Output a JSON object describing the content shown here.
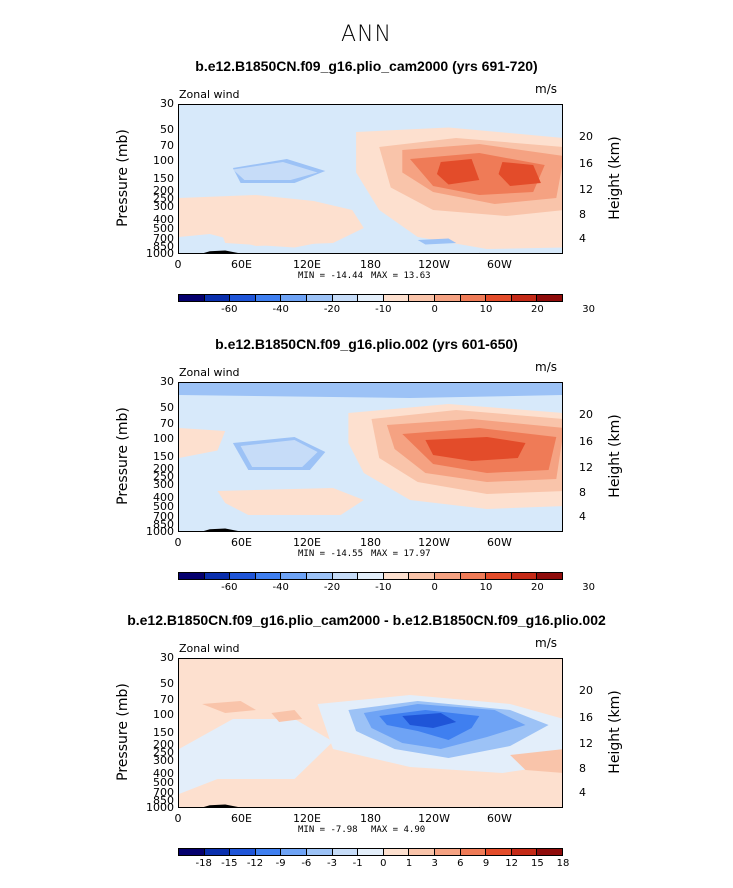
{
  "figure": {
    "title": "ANN"
  },
  "chart_data": [
    {
      "type": "heatmap",
      "title": "b.e12.B1850CN.f09_g16.plio_cam2000 (yrs 691-720)",
      "variable": "Zonal wind",
      "units": "m/s",
      "ylabel": "Pressure (mb)",
      "y2label": "Height (km)",
      "yticks": [
        "30",
        "50",
        "70",
        "100",
        "150",
        "200",
        "250",
        "300",
        "400",
        "500",
        "700",
        "850",
        "1000"
      ],
      "y2ticks": [
        "20",
        "16",
        "12",
        "8",
        "4"
      ],
      "xticks": [
        "0",
        "60E",
        "120E",
        "180",
        "120W",
        "60W"
      ],
      "min_label": "MIN = -14.44",
      "max_label": "MAX = 13.63",
      "min": -14.44,
      "max": 13.63,
      "colorbar_labels": [
        "-60",
        "-40",
        "-20",
        "-10",
        "0",
        "10",
        "20",
        "30"
      ]
    },
    {
      "type": "heatmap",
      "title": "b.e12.B1850CN.f09_g16.plio.002 (yrs 601-650)",
      "variable": "Zonal wind",
      "units": "m/s",
      "ylabel": "Pressure (mb)",
      "y2label": "Height (km)",
      "yticks": [
        "30",
        "50",
        "70",
        "100",
        "150",
        "200",
        "250",
        "300",
        "400",
        "500",
        "700",
        "850",
        "1000"
      ],
      "y2ticks": [
        "20",
        "16",
        "12",
        "8",
        "4"
      ],
      "xticks": [
        "0",
        "60E",
        "120E",
        "180",
        "120W",
        "60W"
      ],
      "min_label": "MIN = -14.55",
      "max_label": "MAX = 17.97",
      "min": -14.55,
      "max": 17.97,
      "colorbar_labels": [
        "-60",
        "-40",
        "-20",
        "-10",
        "0",
        "10",
        "20",
        "30"
      ]
    },
    {
      "type": "heatmap",
      "title": "b.e12.B1850CN.f09_g16.plio_cam2000 - b.e12.B1850CN.f09_g16.plio.002",
      "variable": "Zonal wind",
      "units": "m/s",
      "ylabel": "Pressure (mb)",
      "y2label": "Height (km)",
      "yticks": [
        "30",
        "50",
        "70",
        "100",
        "150",
        "200",
        "250",
        "300",
        "400",
        "500",
        "700",
        "850",
        "1000"
      ],
      "y2ticks": [
        "20",
        "16",
        "12",
        "8",
        "4"
      ],
      "xticks": [
        "0",
        "60E",
        "120E",
        "180",
        "120W",
        "60W"
      ],
      "min_label": "MIN = -7.98",
      "max_label": "MAX = 4.90",
      "min": -7.98,
      "max": 4.9,
      "colorbar_labels": [
        "-18",
        "-15",
        "-12",
        "-9",
        "-6",
        "-3",
        "-1",
        "0",
        "1",
        "3",
        "6",
        "9",
        "12",
        "15",
        "18"
      ]
    }
  ],
  "colors": {
    "colorbar": [
      "#05006e",
      "#0a2fad",
      "#1f55d8",
      "#3f7ff0",
      "#6ea3f5",
      "#9cc2f6",
      "#c6dcf8",
      "#e3eefa",
      "#fde0cf",
      "#f9c4aa",
      "#f5a282",
      "#ef7b57",
      "#e34c2a",
      "#c42a17",
      "#8f0c0b"
    ]
  }
}
